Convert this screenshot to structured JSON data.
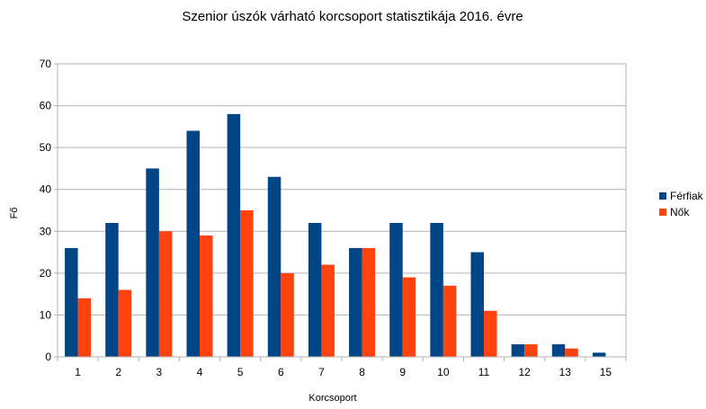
{
  "chart_data": {
    "type": "bar",
    "title": "Szenior úszók várható korcsoport statisztikája 2016. évre",
    "xlabel": "Korcsoport",
    "ylabel": "Fő",
    "categories": [
      "1",
      "2",
      "3",
      "4",
      "5",
      "6",
      "7",
      "8",
      "9",
      "10",
      "11",
      "12",
      "13",
      "15"
    ],
    "ylim": [
      0,
      70
    ],
    "yticks": [
      0,
      10,
      20,
      30,
      40,
      50,
      60,
      70
    ],
    "grid": true,
    "legend_position": "right",
    "series": [
      {
        "name": "Férfiak",
        "color": "#004586",
        "values": [
          26,
          32,
          45,
          54,
          58,
          43,
          32,
          26,
          32,
          32,
          25,
          3,
          3,
          1
        ]
      },
      {
        "name": "Nők",
        "color": "#ff420e",
        "values": [
          14,
          16,
          30,
          29,
          35,
          20,
          22,
          26,
          19,
          17,
          11,
          3,
          2,
          0
        ]
      }
    ]
  }
}
